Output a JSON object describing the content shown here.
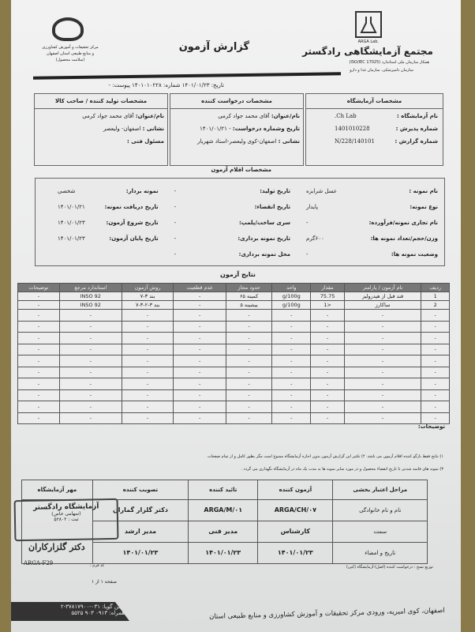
{
  "header": {
    "lab_name": "مجتمع آزمایشگاهی رادگستر",
    "lab_logo_text": "ARGA Lab.",
    "lab_sub1": "همکار سازمان ملی استاندارد (ISO/IEC 17025)",
    "lab_sub2": "سازمان دامپزشکی، سازمان غذا و دارو",
    "title": "گزارش آزمون",
    "center_lines": [
      "مرکز تحقیقات و آموزش کشاورزی",
      "و منابع طبیعی استان اصفهان",
      "(سلامت محصول)"
    ],
    "date_label": "تاریخ:",
    "date": "۱۴۰۱/۰۱/۲۳",
    "number_label": "شماره:",
    "number": "۱۴۰۱۰۱۰۲۲۸",
    "attachment_label": "پیوست:",
    "attachment": "-"
  },
  "parties": {
    "lab": {
      "heading": "مشخصات آزمایشگاه",
      "rows": [
        [
          "نام آزمایشگاه :",
          "Ch Lab."
        ],
        [
          "شماره پذیرش :",
          "1401010228"
        ],
        [
          "شماره گزارش :",
          "140101/N/228"
        ]
      ]
    },
    "requester": {
      "heading": "مشخصات درخواست کننده",
      "rows": [
        [
          "نام/عنوان:",
          "آقای محمد جواد کرمی"
        ],
        [
          "تاریخ وشماره درخواست:",
          "- ۱۴۰۱/۰۱/۲۱"
        ],
        [
          "نشانی :",
          "اصفهان-کوی ولیعصر-استاد شهریار"
        ]
      ]
    },
    "producer": {
      "heading": "مشخصات تولید کننده / صاحب کالا",
      "rows": [
        [
          "نام/عنوان:",
          "آقای محمد جواد کرمی"
        ],
        [
          "نشانی :",
          "اصفهان- ولیعصر"
        ],
        [
          "مسئول فنی :",
          ""
        ]
      ]
    }
  },
  "items": {
    "heading": "مشخصات اقلام آزمون",
    "col1": [
      [
        "نام نمونه :",
        "عسل شرابزه"
      ],
      [
        "نوع نمونه:",
        "پایدار"
      ],
      [
        "نام تجاری نمونه/فرآورده:",
        "-"
      ],
      [
        "وزن/حجم/تعداد نمونه ها:",
        "۶۰۰گرم"
      ],
      [
        "وضعیت نمونه ها:",
        "-"
      ]
    ],
    "col2": [
      [
        "تاریخ تولید:",
        "-"
      ],
      [
        "تاریخ انقضاء:",
        "-"
      ],
      [
        "سری ساخت/پلمپ:",
        "-"
      ],
      [
        "تاریخ نمونه برداری:",
        "-"
      ],
      [
        "محل نمونه برداری:",
        "-"
      ]
    ],
    "col3": [
      [
        "نمونه بردار:",
        "شخصی"
      ],
      [
        "تاریخ دریافت نمونه:",
        "۱۴۰۱/۰۱/۲۱"
      ],
      [
        "تاریخ شروع آزمون:",
        "۱۴۰۱/۰۱/۲۳"
      ],
      [
        "تاریخ پایان آزمون:",
        "۱۴۰۱/۰۱/۲۳"
      ]
    ]
  },
  "results": {
    "heading": "نتایج آزمون",
    "columns": [
      "ردیف",
      "نام آزمون / پارامتر",
      "مقدار",
      "واحد",
      "حدود مجاز",
      "عدم قطعیت",
      "روش آزمون",
      "استاندارد مرجع",
      "توضیحات"
    ],
    "rows": [
      [
        "1",
        "قند قبل از هیدرولیز",
        "75.75",
        "g/100g",
        "کمینه ۶۵",
        "-",
        "بند ۳-۷",
        "INSO 92",
        "-"
      ],
      [
        "2",
        "ساکارز",
        "<1",
        "g/100g",
        "بیشینه ۵",
        "-",
        "بند ۳-۲-۳-۷",
        "INSO 92",
        "-"
      ]
    ],
    "empty_cell": "-",
    "notes_label": "توضیحات:"
  },
  "footnotes": [
    "۱) نتایج فقط بازگو کننده اقلام آزمون می باشد. ۲) تکثیر این گزارش آزمون بدون اجازه آزمایشگاه ممنوع است مگر بطور کامل و از تمام صفحات",
    "۳) نمونه های فاسد شدنی تا تاریخ انقضاء محصول و در مورد سایر نمونه ها به مدت یک ماه در آزمایشگاه نگهداری می گردد ."
  ],
  "signatures": {
    "columns": [
      "مراحل اعتبار بخشی",
      "آزمون کننده",
      "تائید کننده",
      "تصویب کننده",
      "مهر آزمایشگاه"
    ],
    "rows": [
      [
        "نام و نام خانوادگی",
        "ARGA/CH/۰۷",
        "ARGA/M/۰۱",
        "دکتر گلزار گماران"
      ],
      [
        "سمت",
        "کارشناس",
        "مدیر فنی",
        "مدیر ارشد"
      ],
      [
        "تاریخ و امضاء",
        "۱۴۰۱/۰۱/۲۳",
        "۱۴۰۱/۰۱/۲۳",
        "۱۴۰۱/۰۱/۲۳"
      ]
    ],
    "stamp_lines": [
      "آزمایشگاه رادگستر",
      "(سهامی خاص)",
      "ثبت : ۵۲۸۰۲"
    ],
    "stamp_signature": "دکتر گلزارکاران",
    "distribution": "توزیع نسخ : درخواست کننده (اصل)-آزمایشگاه (کپی)",
    "form_code_label": "کد فرم :",
    "form_code": "ARGA-F29",
    "page": "صفحه ۱ از ۱"
  },
  "footer": {
    "address": "اصفهان، کوی امیریه، ورودی مرکز تحقیقات و آموزش کشاورزی و منابع طبیعی استان",
    "phone_label": "تلفن گویا:",
    "phone": "۰۳۱-۳۷۸۱۷۹۰۰-۲",
    "mobile_label": "همراه:",
    "mobile": "۰۹۱۳ ۹۰۳ ۵۵۲۵"
  }
}
